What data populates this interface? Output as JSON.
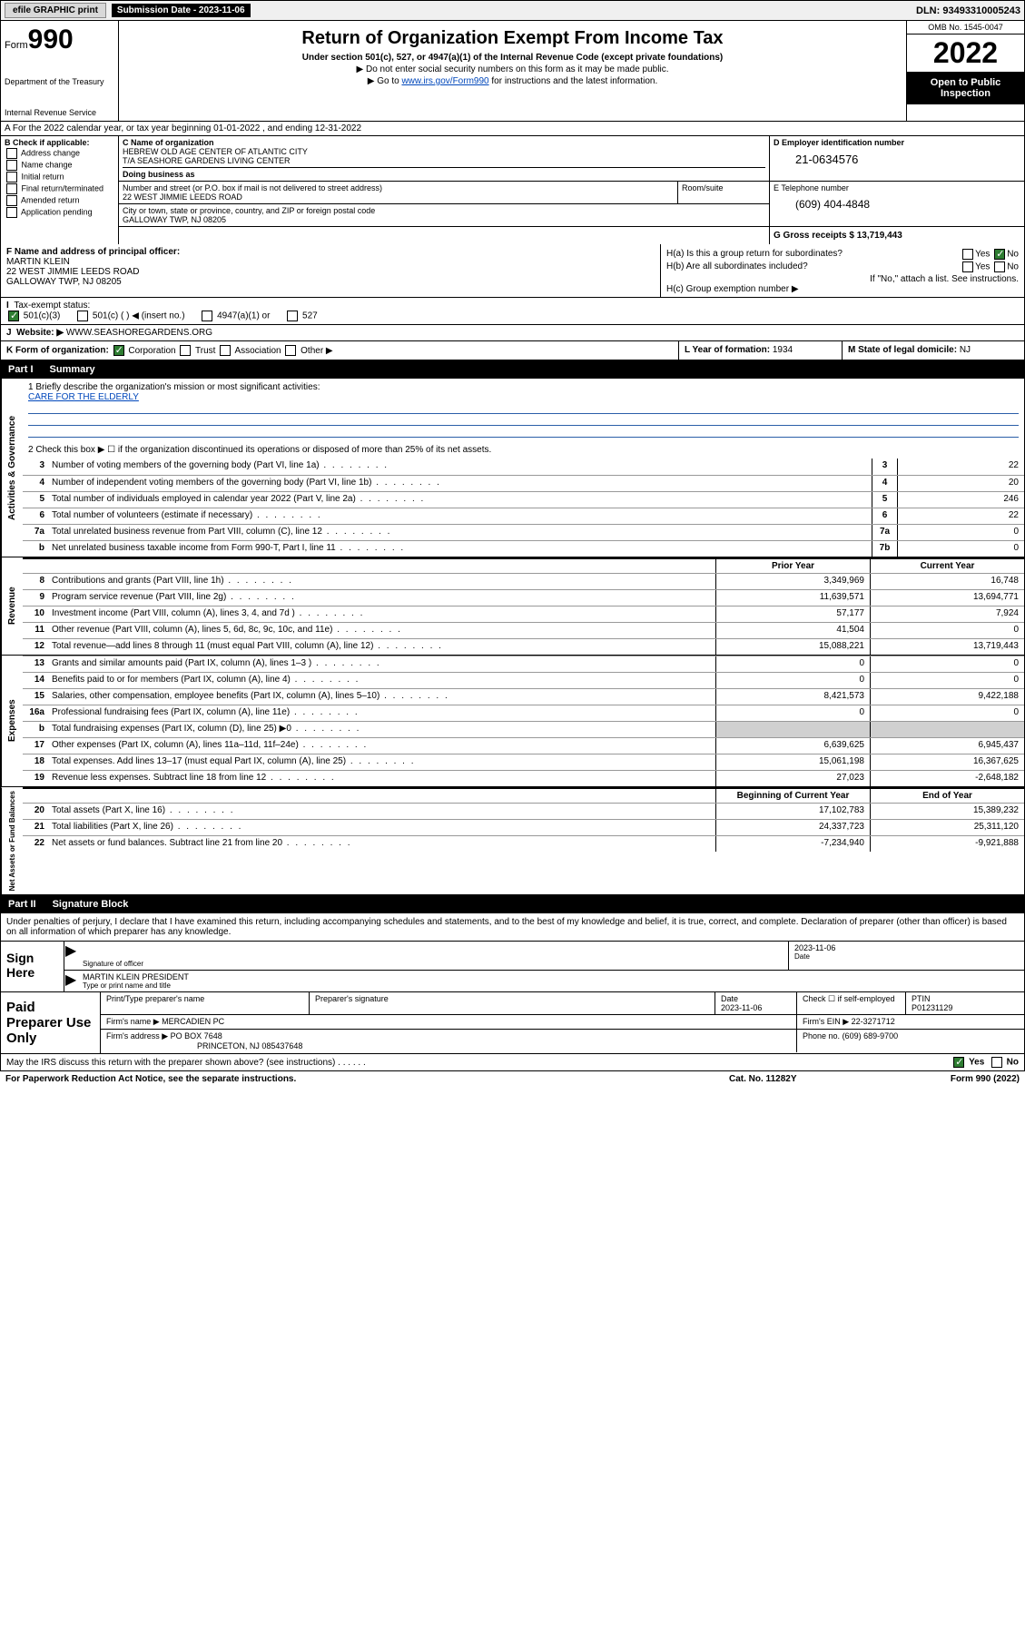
{
  "topbar": {
    "efile": "efile GRAPHIC print",
    "subdate_lbl": "Submission Date - 2023-11-06",
    "dln": "DLN: 93493310005243"
  },
  "header": {
    "form_word": "Form",
    "form_num": "990",
    "dept": "Department of the Treasury",
    "irs": "Internal Revenue Service",
    "title": "Return of Organization Exempt From Income Tax",
    "sub": "Under section 501(c), 527, or 4947(a)(1) of the Internal Revenue Code (except private foundations)",
    "sub2a": "▶ Do not enter social security numbers on this form as it may be made public.",
    "sub2b_pre": "▶ Go to ",
    "sub2b_link": "www.irs.gov/Form990",
    "sub2b_post": " for instructions and the latest information.",
    "omb": "OMB No. 1545-0047",
    "year": "2022",
    "open": "Open to Public Inspection"
  },
  "A": {
    "text": "A For the 2022 calendar year, or tax year beginning 01-01-2022   , and ending 12-31-2022"
  },
  "B": {
    "hdr": "B Check if applicable:",
    "addr": "Address change",
    "name": "Name change",
    "init": "Initial return",
    "final": "Final return/terminated",
    "amend": "Amended return",
    "app": "Application pending"
  },
  "C": {
    "lbl": "C Name of organization",
    "name1": "HEBREW OLD AGE CENTER OF ATLANTIC CITY",
    "name2": "T/A SEASHORE GARDENS LIVING CENTER",
    "dba_lbl": "Doing business as",
    "street_lbl": "Number and street (or P.O. box if mail is not delivered to street address)",
    "street": "22 WEST JIMMIE LEEDS ROAD",
    "room_lbl": "Room/suite",
    "city_lbl": "City or town, state or province, country, and ZIP or foreign postal code",
    "city": "GALLOWAY TWP, NJ  08205"
  },
  "D": {
    "lbl": "D Employer identification number",
    "val": "21-0634576"
  },
  "E": {
    "lbl": "E Telephone number",
    "val": "(609) 404-4848"
  },
  "G": {
    "lbl": "G Gross receipts $",
    "val": "13,719,443"
  },
  "F": {
    "lbl": "F Name and address of principal officer:",
    "name": "MARTIN KLEIN",
    "addr1": "22 WEST JIMMIE LEEDS ROAD",
    "addr2": "GALLOWAY TWP, NJ  08205"
  },
  "H": {
    "a": "H(a)  Is this a group return for subordinates?",
    "a_yes": "Yes",
    "a_no": "No",
    "b": "H(b)  Are all subordinates included?",
    "b_yes": "Yes",
    "b_no": "No",
    "b_note": "If \"No,\" attach a list. See instructions.",
    "c": "H(c)  Group exemption number ▶"
  },
  "I": {
    "lbl": "Tax-exempt status:",
    "o1": "501(c)(3)",
    "o2": "501(c) (  ) ◀ (insert no.)",
    "o3": "4947(a)(1) or",
    "o4": "527"
  },
  "J": {
    "lbl": "Website: ▶",
    "val": "WWW.SEASHOREGARDENS.ORG"
  },
  "K": {
    "lbl": "K Form of organization:",
    "corp": "Corporation",
    "trust": "Trust",
    "assoc": "Association",
    "other": "Other ▶"
  },
  "L": {
    "lbl": "L Year of formation:",
    "val": "1934"
  },
  "M": {
    "lbl": "M State of legal domicile:",
    "val": "NJ"
  },
  "part1": {
    "num": "Part I",
    "title": "Summary"
  },
  "tabs": {
    "gov": "Activities & Governance",
    "rev": "Revenue",
    "exp": "Expenses",
    "net": "Net Assets or Fund Balances"
  },
  "mission": {
    "lbl": "1  Briefly describe the organization's mission or most significant activities:",
    "val": "CARE FOR THE ELDERLY"
  },
  "line2": "2  Check this box ▶ ☐  if the organization discontinued its operations or disposed of more than 25% of its net assets.",
  "cols": {
    "prior": "Prior Year",
    "current": "Current Year",
    "begin": "Beginning of Current Year",
    "end": "End of Year"
  },
  "lines_gov": [
    {
      "n": "3",
      "d": "Number of voting members of the governing body (Part VI, line 1a)",
      "box": "3",
      "v": "22"
    },
    {
      "n": "4",
      "d": "Number of independent voting members of the governing body (Part VI, line 1b)",
      "box": "4",
      "v": "20"
    },
    {
      "n": "5",
      "d": "Total number of individuals employed in calendar year 2022 (Part V, line 2a)",
      "box": "5",
      "v": "246"
    },
    {
      "n": "6",
      "d": "Total number of volunteers (estimate if necessary)",
      "box": "6",
      "v": "22"
    },
    {
      "n": "7a",
      "d": "Total unrelated business revenue from Part VIII, column (C), line 12",
      "box": "7a",
      "v": "0"
    },
    {
      "n": "b",
      "d": "Net unrelated business taxable income from Form 990-T, Part I, line 11",
      "box": "7b",
      "v": "0"
    }
  ],
  "lines_rev": [
    {
      "n": "8",
      "d": "Contributions and grants (Part VIII, line 1h)",
      "p": "3,349,969",
      "c": "16,748"
    },
    {
      "n": "9",
      "d": "Program service revenue (Part VIII, line 2g)",
      "p": "11,639,571",
      "c": "13,694,771"
    },
    {
      "n": "10",
      "d": "Investment income (Part VIII, column (A), lines 3, 4, and 7d )",
      "p": "57,177",
      "c": "7,924"
    },
    {
      "n": "11",
      "d": "Other revenue (Part VIII, column (A), lines 5, 6d, 8c, 9c, 10c, and 11e)",
      "p": "41,504",
      "c": "0"
    },
    {
      "n": "12",
      "d": "Total revenue—add lines 8 through 11 (must equal Part VIII, column (A), line 12)",
      "p": "15,088,221",
      "c": "13,719,443"
    }
  ],
  "lines_exp": [
    {
      "n": "13",
      "d": "Grants and similar amounts paid (Part IX, column (A), lines 1–3 )",
      "p": "0",
      "c": "0"
    },
    {
      "n": "14",
      "d": "Benefits paid to or for members (Part IX, column (A), line 4)",
      "p": "0",
      "c": "0"
    },
    {
      "n": "15",
      "d": "Salaries, other compensation, employee benefits (Part IX, column (A), lines 5–10)",
      "p": "8,421,573",
      "c": "9,422,188"
    },
    {
      "n": "16a",
      "d": "Professional fundraising fees (Part IX, column (A), line 11e)",
      "p": "0",
      "c": "0"
    },
    {
      "n": "b",
      "d": "Total fundraising expenses (Part IX, column (D), line 25) ▶0",
      "p": "",
      "c": "",
      "gray": true
    },
    {
      "n": "17",
      "d": "Other expenses (Part IX, column (A), lines 11a–11d, 11f–24e)",
      "p": "6,639,625",
      "c": "6,945,437"
    },
    {
      "n": "18",
      "d": "Total expenses. Add lines 13–17 (must equal Part IX, column (A), line 25)",
      "p": "15,061,198",
      "c": "16,367,625"
    },
    {
      "n": "19",
      "d": "Revenue less expenses. Subtract line 18 from line 12",
      "p": "27,023",
      "c": "-2,648,182"
    }
  ],
  "lines_net": [
    {
      "n": "20",
      "d": "Total assets (Part X, line 16)",
      "p": "17,102,783",
      "c": "15,389,232"
    },
    {
      "n": "21",
      "d": "Total liabilities (Part X, line 26)",
      "p": "24,337,723",
      "c": "25,311,120"
    },
    {
      "n": "22",
      "d": "Net assets or fund balances. Subtract line 21 from line 20",
      "p": "-7,234,940",
      "c": "-9,921,888"
    }
  ],
  "part2": {
    "num": "Part II",
    "title": "Signature Block"
  },
  "sig": {
    "decl": "Under penalties of perjury, I declare that I have examined this return, including accompanying schedules and statements, and to the best of my knowledge and belief, it is true, correct, and complete. Declaration of preparer (other than officer) is based on all information of which preparer has any knowledge.",
    "sign_here": "Sign Here",
    "sig_officer": "Signature of officer",
    "date_lbl": "Date",
    "date": "2023-11-06",
    "name_title": "MARTIN KLEIN  PRESIDENT",
    "type_lbl": "Type or print name and title"
  },
  "prep": {
    "hdr": "Paid Preparer Use Only",
    "ptname_lbl": "Print/Type preparer's name",
    "psig_lbl": "Preparer's signature",
    "pdate_lbl": "Date",
    "pdate": "2023-11-06",
    "pcheck_lbl": "Check ☐ if self-employed",
    "ptin_lbl": "PTIN",
    "ptin": "P01231129",
    "firm_lbl": "Firm's name   ▶",
    "firm": "MERCADIEN PC",
    "ein_lbl": "Firm's EIN ▶",
    "ein": "22-3271712",
    "addr_lbl": "Firm's address ▶",
    "addr1": "PO BOX 7648",
    "addr2": "PRINCETON, NJ  085437648",
    "phone_lbl": "Phone no.",
    "phone": "(609) 689-9700"
  },
  "footer": {
    "discuss": "May the IRS discuss this return with the preparer shown above? (see instructions)",
    "yes": "Yes",
    "no": "No",
    "paperwork": "For Paperwork Reduction Act Notice, see the separate instructions.",
    "cat": "Cat. No. 11282Y",
    "form": "Form 990 (2022)"
  }
}
